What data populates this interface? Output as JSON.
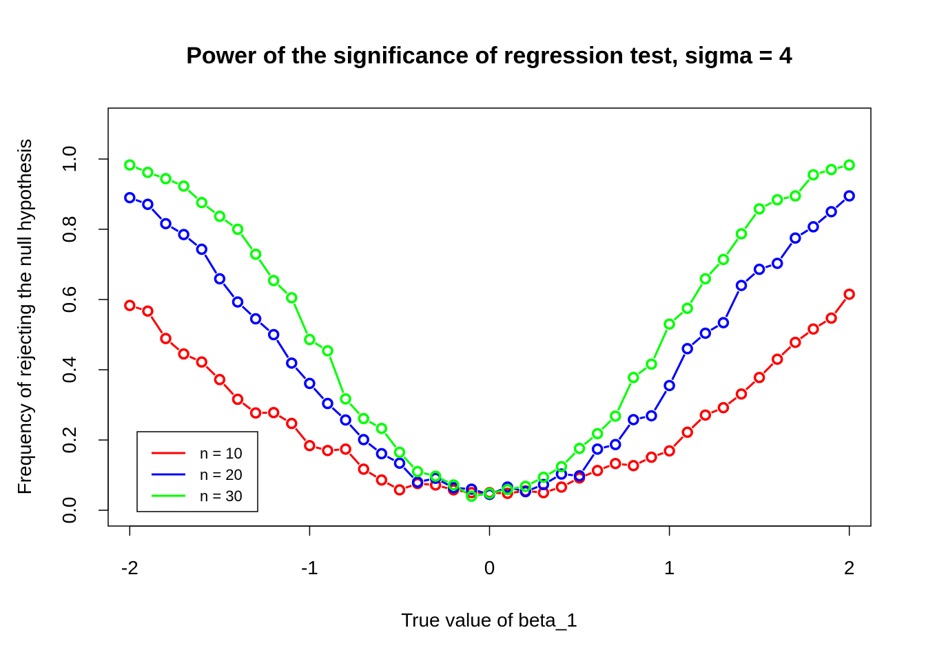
{
  "chart_data": {
    "type": "line",
    "title": "Power of the significance of regression test, sigma = 4",
    "xlabel": "True value of beta_1",
    "ylabel": "Frequency of rejecting the null hypothesis",
    "xlim": [
      -2.12,
      2.12
    ],
    "ylim": [
      -0.045,
      1.145
    ],
    "x_ticks": [
      -2,
      -1,
      0,
      1,
      2
    ],
    "x_tick_labels": [
      "-2",
      "-1",
      "0",
      "1",
      "2"
    ],
    "y_ticks": [
      0.0,
      0.2,
      0.4,
      0.6,
      0.8,
      1.0
    ],
    "y_tick_labels": [
      "0.0",
      "0.2",
      "0.4",
      "0.6",
      "0.8",
      "1.0"
    ],
    "grid": false,
    "legend_position": "bottom-left",
    "x": [
      -2.0,
      -1.9,
      -1.8,
      -1.7,
      -1.6,
      -1.5,
      -1.4,
      -1.3,
      -1.2,
      -1.1,
      -1.0,
      -0.9,
      -0.8,
      -0.7,
      -0.6,
      -0.5,
      -0.4,
      -0.3,
      -0.2,
      -0.1,
      0.0,
      0.1,
      0.2,
      0.3,
      0.4,
      0.5,
      0.6,
      0.7,
      0.8,
      0.9,
      1.0,
      1.1,
      1.2,
      1.3,
      1.4,
      1.5,
      1.6,
      1.7,
      1.8,
      1.9,
      2.0
    ],
    "series": [
      {
        "name": "n = 10",
        "color": "#ff0000",
        "values": [
          0.583,
          0.567,
          0.489,
          0.445,
          0.422,
          0.372,
          0.316,
          0.277,
          0.278,
          0.247,
          0.184,
          0.17,
          0.174,
          0.117,
          0.086,
          0.058,
          0.076,
          0.072,
          0.058,
          0.05,
          0.05,
          0.048,
          0.055,
          0.05,
          0.066,
          0.092,
          0.113,
          0.133,
          0.127,
          0.151,
          0.169,
          0.222,
          0.271,
          0.292,
          0.331,
          0.378,
          0.43,
          0.478,
          0.516,
          0.547,
          0.615
        ]
      },
      {
        "name": "n = 20",
        "color": "#0000ff",
        "values": [
          0.89,
          0.871,
          0.816,
          0.785,
          0.743,
          0.659,
          0.593,
          0.545,
          0.5,
          0.419,
          0.361,
          0.304,
          0.257,
          0.201,
          0.161,
          0.134,
          0.08,
          0.091,
          0.064,
          0.06,
          0.045,
          0.066,
          0.053,
          0.073,
          0.103,
          0.098,
          0.174,
          0.187,
          0.258,
          0.269,
          0.355,
          0.46,
          0.504,
          0.534,
          0.64,
          0.686,
          0.703,
          0.775,
          0.807,
          0.85,
          0.895
        ]
      },
      {
        "name": "n = 30",
        "color": "#00ff00",
        "values": [
          0.983,
          0.962,
          0.944,
          0.923,
          0.876,
          0.837,
          0.8,
          0.729,
          0.654,
          0.605,
          0.486,
          0.454,
          0.317,
          0.261,
          0.233,
          0.165,
          0.11,
          0.097,
          0.072,
          0.04,
          0.048,
          0.059,
          0.068,
          0.094,
          0.124,
          0.176,
          0.218,
          0.268,
          0.378,
          0.416,
          0.53,
          0.575,
          0.659,
          0.714,
          0.787,
          0.858,
          0.884,
          0.895,
          0.955,
          0.97,
          0.983
        ]
      }
    ]
  }
}
